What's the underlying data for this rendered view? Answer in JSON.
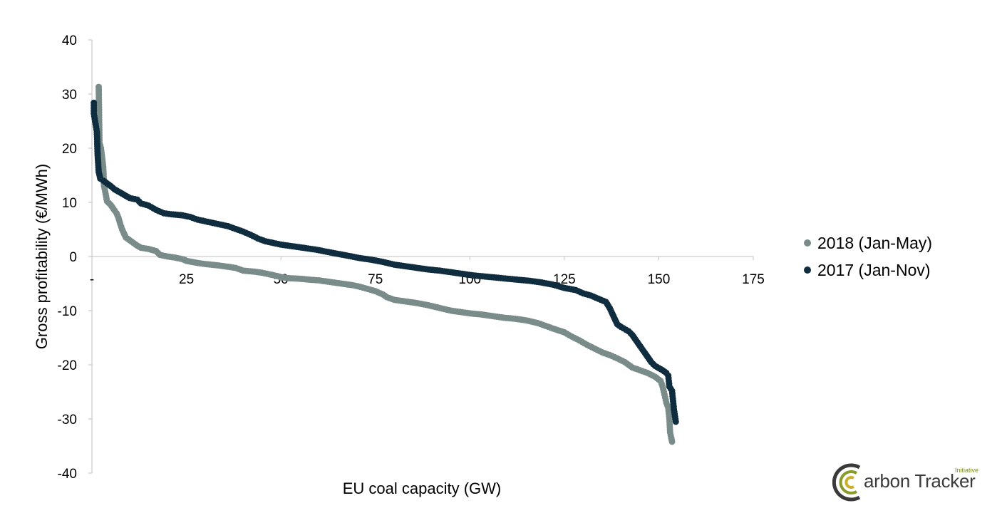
{
  "chart_data": {
    "type": "scatter",
    "title": "",
    "xlabel": "EU coal capacity (GW)",
    "ylabel": "Gross profitability (€/MWh)",
    "xlim": [
      0,
      175
    ],
    "ylim": [
      -40,
      40
    ],
    "x_ticks": [
      0,
      25,
      50,
      75,
      100,
      125,
      150,
      175
    ],
    "x_tick_labels": [
      "-",
      "25",
      "50",
      "75",
      "100",
      "125",
      "150",
      "175"
    ],
    "y_ticks": [
      40,
      30,
      20,
      10,
      0,
      -10,
      -20,
      -30,
      -40
    ],
    "y_tick_labels": [
      "40",
      "30",
      "20",
      "10",
      "0",
      "-10",
      "-20",
      "-30",
      "-40"
    ],
    "grid": false,
    "legend_position": "right",
    "series": [
      {
        "name": "2018 (Jan-May)",
        "color": "#7a8c8a",
        "points": [
          [
            1.8,
            31.3
          ],
          [
            2,
            21
          ],
          [
            2.4,
            20
          ],
          [
            3,
            16.5
          ],
          [
            3.2,
            13
          ],
          [
            3.5,
            12
          ],
          [
            4,
            10.2
          ],
          [
            5,
            9.5
          ],
          [
            6,
            8.5
          ],
          [
            6.5,
            8
          ],
          [
            7,
            7.2
          ],
          [
            7.5,
            6
          ],
          [
            8,
            5
          ],
          [
            8.5,
            4.2
          ],
          [
            9,
            3.5
          ],
          [
            10,
            3
          ],
          [
            11,
            2.5
          ],
          [
            12,
            2
          ],
          [
            13,
            1.6
          ],
          [
            15,
            1.4
          ],
          [
            17,
            1
          ],
          [
            18,
            0.3
          ],
          [
            20,
            0
          ],
          [
            22,
            -0.2
          ],
          [
            24,
            -0.5
          ],
          [
            25,
            -0.8
          ],
          [
            28,
            -1.2
          ],
          [
            30,
            -1.4
          ],
          [
            33,
            -1.6
          ],
          [
            36,
            -1.9
          ],
          [
            38,
            -2.1
          ],
          [
            40,
            -2.6
          ],
          [
            43,
            -2.8
          ],
          [
            45,
            -3
          ],
          [
            47,
            -3.3
          ],
          [
            49,
            -3.6
          ],
          [
            50,
            -3.8
          ],
          [
            52,
            -4
          ],
          [
            55,
            -4.1
          ],
          [
            58,
            -4.3
          ],
          [
            60,
            -4.4
          ],
          [
            63,
            -4.7
          ],
          [
            66,
            -5
          ],
          [
            69,
            -5.3
          ],
          [
            71,
            -5.6
          ],
          [
            73,
            -6
          ],
          [
            75,
            -6.4
          ],
          [
            77,
            -7
          ],
          [
            78,
            -7.5
          ],
          [
            80,
            -8
          ],
          [
            83,
            -8.3
          ],
          [
            86,
            -8.6
          ],
          [
            89,
            -9
          ],
          [
            92,
            -9.5
          ],
          [
            95,
            -10
          ],
          [
            98,
            -10.3
          ],
          [
            100,
            -10.5
          ],
          [
            103,
            -10.7
          ],
          [
            106,
            -11
          ],
          [
            109,
            -11.3
          ],
          [
            112,
            -11.5
          ],
          [
            115,
            -11.8
          ],
          [
            118,
            -12.3
          ],
          [
            120,
            -12.8
          ],
          [
            122,
            -13.3
          ],
          [
            125,
            -14
          ],
          [
            127,
            -14.8
          ],
          [
            129,
            -15.5
          ],
          [
            131,
            -16.3
          ],
          [
            133,
            -17
          ],
          [
            135,
            -17.7
          ],
          [
            137,
            -18.2
          ],
          [
            139,
            -18.8
          ],
          [
            141,
            -19.5
          ],
          [
            143,
            -20.5
          ],
          [
            145,
            -21
          ],
          [
            147,
            -21.5
          ],
          [
            149,
            -22.2
          ],
          [
            150.5,
            -23
          ],
          [
            151,
            -24
          ],
          [
            151.5,
            -25.5
          ],
          [
            152,
            -27
          ],
          [
            152.5,
            -28
          ],
          [
            152.8,
            -30
          ],
          [
            153,
            -32.5
          ],
          [
            153.3,
            -33.5
          ],
          [
            153.5,
            -34.2
          ]
        ]
      },
      {
        "name": "2017 (Jan-Nov)",
        "color": "#0f2d3e",
        "points": [
          [
            0.5,
            28.4
          ],
          [
            0.5,
            26.4
          ],
          [
            1.3,
            23
          ],
          [
            1.4,
            21.2
          ],
          [
            1.5,
            19
          ],
          [
            1.6,
            17.8
          ],
          [
            1.8,
            15.6
          ],
          [
            2.2,
            14.4
          ],
          [
            3,
            14
          ],
          [
            4,
            13.5
          ],
          [
            5,
            13
          ],
          [
            6,
            12.4
          ],
          [
            7,
            12
          ],
          [
            8,
            11.6
          ],
          [
            9,
            11.2
          ],
          [
            10,
            10.8
          ],
          [
            12,
            10.5
          ],
          [
            13,
            9.8
          ],
          [
            15,
            9.4
          ],
          [
            17,
            8.6
          ],
          [
            19,
            8
          ],
          [
            21,
            7.8
          ],
          [
            24,
            7.6
          ],
          [
            26,
            7.3
          ],
          [
            28,
            6.8
          ],
          [
            30,
            6.5
          ],
          [
            32,
            6.2
          ],
          [
            34,
            5.9
          ],
          [
            36,
            5.6
          ],
          [
            38,
            5.1
          ],
          [
            40,
            4.6
          ],
          [
            42,
            4
          ],
          [
            44,
            3.3
          ],
          [
            46,
            2.8
          ],
          [
            48,
            2.5
          ],
          [
            50,
            2.2
          ],
          [
            53,
            1.9
          ],
          [
            56,
            1.6
          ],
          [
            59,
            1.3
          ],
          [
            62,
            0.9
          ],
          [
            65,
            0.5
          ],
          [
            68,
            0.1
          ],
          [
            71,
            -0.3
          ],
          [
            74,
            -0.6
          ],
          [
            77,
            -1
          ],
          [
            80,
            -1.5
          ],
          [
            83,
            -1.8
          ],
          [
            86,
            -2.1
          ],
          [
            89,
            -2.4
          ],
          [
            92,
            -2.6
          ],
          [
            95,
            -2.9
          ],
          [
            98,
            -3.2
          ],
          [
            101,
            -3.5
          ],
          [
            104,
            -3.7
          ],
          [
            107,
            -3.9
          ],
          [
            110,
            -4.1
          ],
          [
            113,
            -4.3
          ],
          [
            116,
            -4.5
          ],
          [
            119,
            -4.8
          ],
          [
            122,
            -5.2
          ],
          [
            125,
            -5.8
          ],
          [
            128,
            -6.2
          ],
          [
            130,
            -6.8
          ],
          [
            132,
            -7.2
          ],
          [
            134,
            -7.8
          ],
          [
            136,
            -8.4
          ],
          [
            137,
            -9.5
          ],
          [
            138,
            -11
          ],
          [
            139,
            -12.5
          ],
          [
            140,
            -13
          ],
          [
            142,
            -13.8
          ],
          [
            143,
            -14.5
          ],
          [
            144,
            -15.5
          ],
          [
            145,
            -16.5
          ],
          [
            146,
            -17.5
          ],
          [
            147,
            -18.5
          ],
          [
            148,
            -19.5
          ],
          [
            149,
            -20.2
          ],
          [
            150,
            -20.6
          ],
          [
            151,
            -21
          ],
          [
            152,
            -21.5
          ],
          [
            152.5,
            -22
          ],
          [
            152.8,
            -24
          ],
          [
            153.5,
            -24.8
          ],
          [
            154,
            -28.2
          ],
          [
            154.5,
            -30.5
          ]
        ]
      }
    ]
  },
  "logo": {
    "text": "arbon Tracker",
    "sub": "Initiative"
  }
}
